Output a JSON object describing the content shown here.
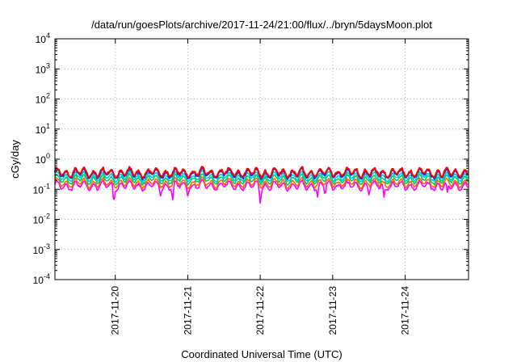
{
  "chart_data": {
    "type": "line",
    "title": "/data/run/goesPlots/archive/2017-11-24/21:00/flux/../bryn/5daysMoon.plot",
    "xlabel": "Coordinated Universal Time (UTC)",
    "ylabel": "cGy/day",
    "yscale": "log",
    "ylim": [
      0.0001,
      10000
    ],
    "xlim": [
      "2017-11-19 04:00",
      "2017-11-24 21:00"
    ],
    "grid": true,
    "y_ticks": [
      {
        "value": 0.0001,
        "base": "10",
        "exp": "-4"
      },
      {
        "value": 0.001,
        "base": "10",
        "exp": "-3"
      },
      {
        "value": 0.01,
        "base": "10",
        "exp": "-2"
      },
      {
        "value": 0.1,
        "base": "10",
        "exp": "-1"
      },
      {
        "value": 1,
        "base": "10",
        "exp": "0"
      },
      {
        "value": 10,
        "base": "10",
        "exp": "1"
      },
      {
        "value": 100,
        "base": "10",
        "exp": "2"
      },
      {
        "value": 1000,
        "base": "10",
        "exp": "3"
      },
      {
        "value": 10000,
        "base": "10",
        "exp": "4"
      }
    ],
    "x_ticks": [
      {
        "value": "2017-11-20",
        "label": "2017-11-20"
      },
      {
        "value": "2017-11-21",
        "label": "2017-11-21"
      },
      {
        "value": "2017-11-22",
        "label": "2017-11-22"
      },
      {
        "value": "2017-11-23",
        "label": "2017-11-23"
      },
      {
        "value": "2017-11-24",
        "label": "2017-11-24"
      }
    ],
    "series": [
      {
        "color": "#ff00ff",
        "level": 0.13,
        "dips": [
          {
            "x": "2017-11-19 23:30",
            "y": 0.03
          },
          {
            "x": "2017-11-20 15:00",
            "y": 0.06
          },
          {
            "x": "2017-11-20 19:00",
            "y": 0.045
          },
          {
            "x": "2017-11-21 00:00",
            "y": 0.06
          },
          {
            "x": "2017-11-22 00:00",
            "y": 0.035
          },
          {
            "x": "2017-11-22 19:00",
            "y": 0.055
          },
          {
            "x": "2017-11-22 21:30",
            "y": 0.06
          },
          {
            "x": "2017-11-23 12:00",
            "y": 0.065
          },
          {
            "x": "2017-11-23 17:00",
            "y": 0.055
          },
          {
            "x": "2017-11-24 14:00",
            "y": 0.08
          }
        ]
      },
      {
        "color": "#ff6600",
        "level": 0.16
      },
      {
        "color": "#00cc66",
        "level": 0.21
      },
      {
        "color": "#00cccc",
        "level": 0.26
      },
      {
        "color": "#0033ff",
        "level": 0.33
      },
      {
        "color": "#ff0000",
        "level": 0.36
      }
    ]
  }
}
